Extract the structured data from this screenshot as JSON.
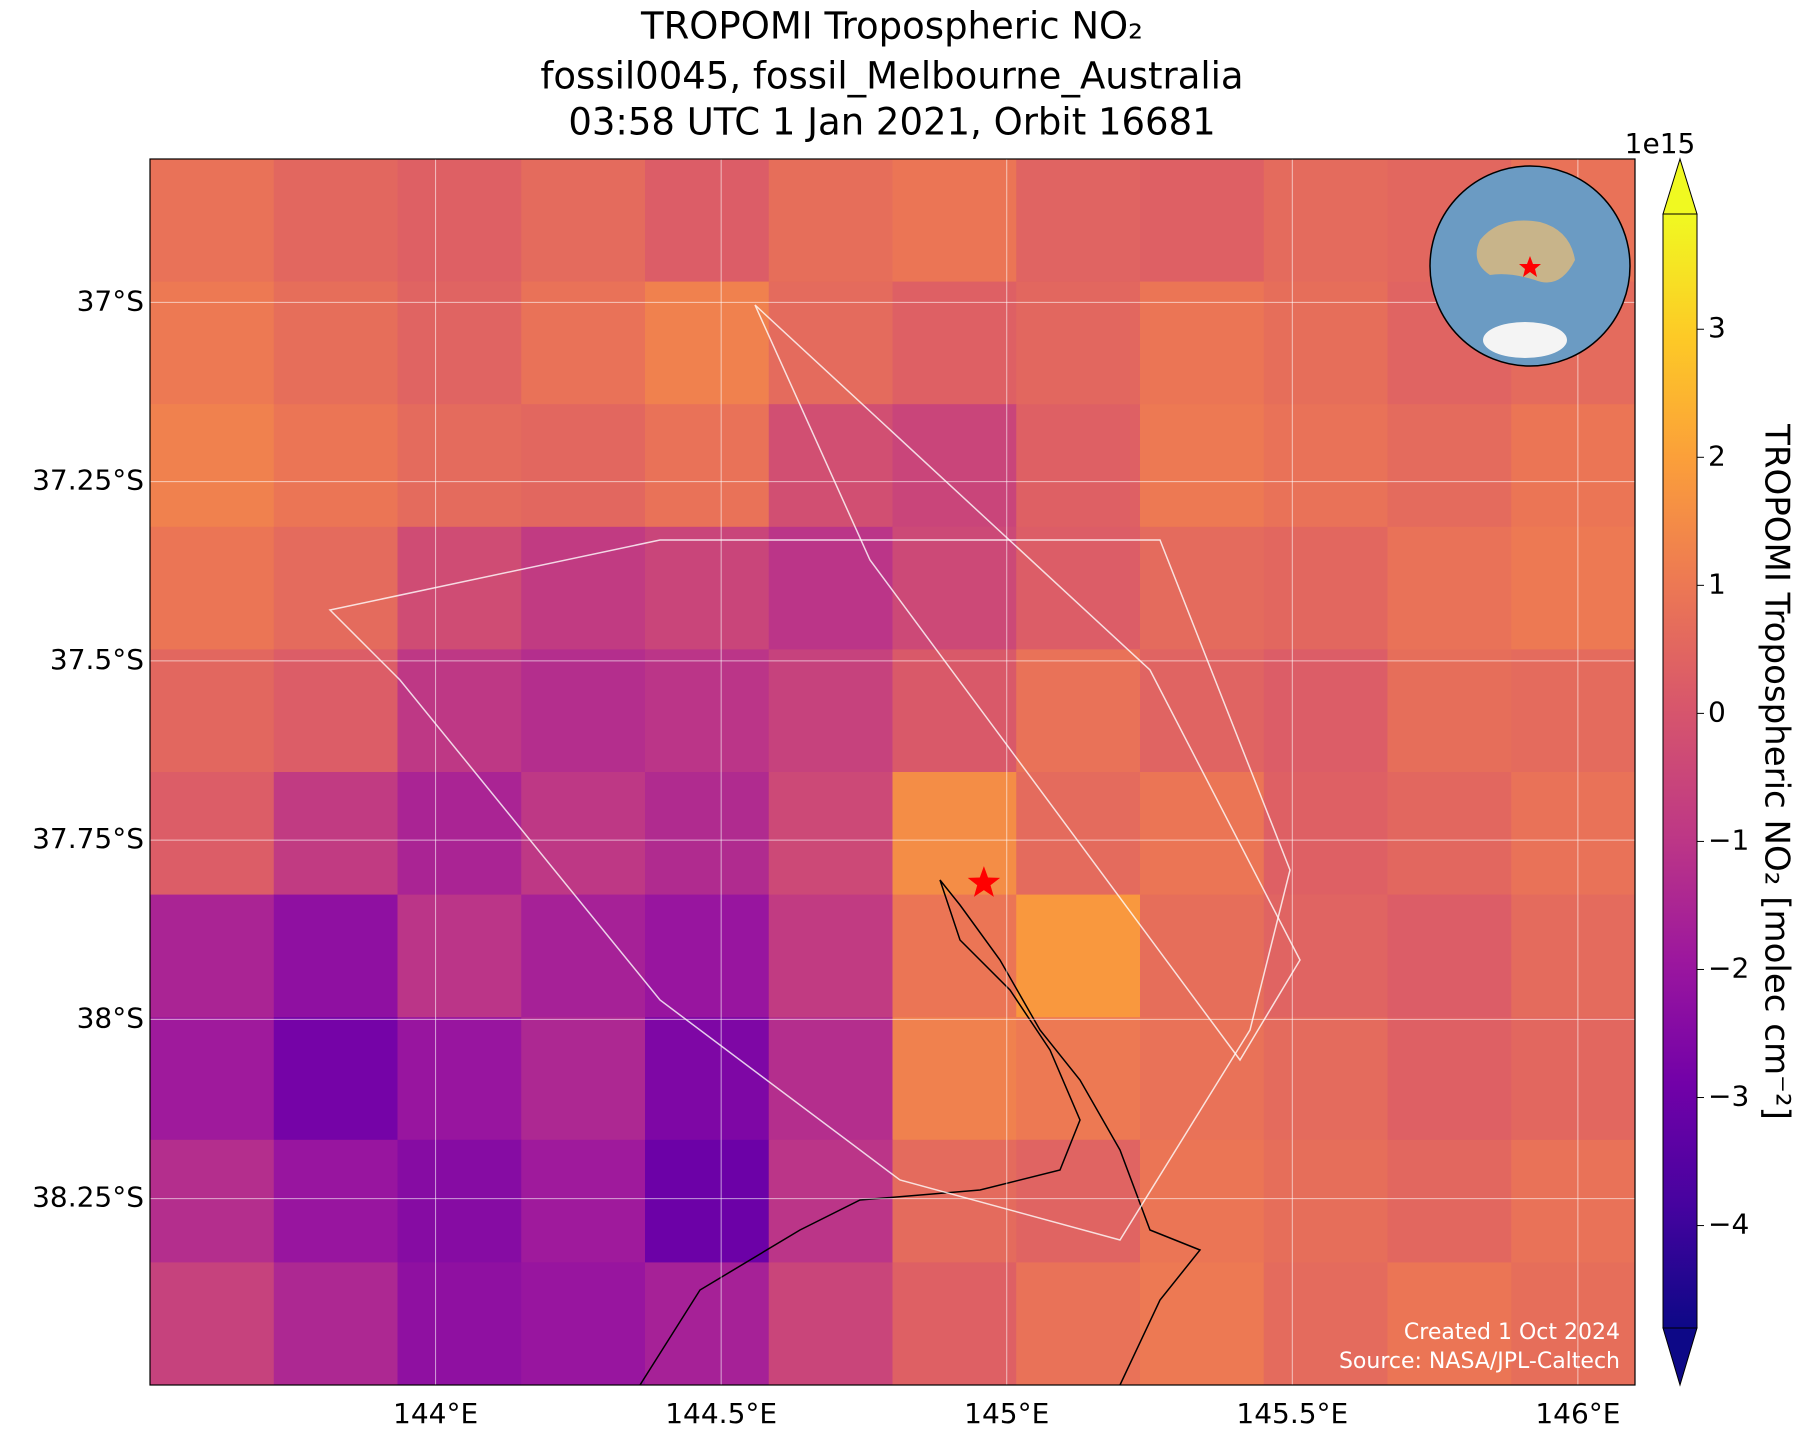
{
  "chart_data": {
    "type": "heatmap",
    "title": [
      "TROPOMI Tropospheric NO₂",
      "fossil0045, fossil_Melbourne_Australia",
      "03:58 UTC 1 Jan 2021, Orbit 16681"
    ],
    "xlim": [
      143.5,
      146.1
    ],
    "ylim": [
      -38.51,
      -36.8
    ],
    "xticks": [
      {
        "value": 144,
        "label": "144°E"
      },
      {
        "value": 144.5,
        "label": "144.5°E"
      },
      {
        "value": 145,
        "label": "145°E"
      },
      {
        "value": 145.5,
        "label": "145.5°E"
      },
      {
        "value": 146,
        "label": "146°E"
      }
    ],
    "yticks": [
      {
        "value": -37,
        "label": "37°S"
      },
      {
        "value": -37.25,
        "label": "37.25°S"
      },
      {
        "value": -37.5,
        "label": "37.5°S"
      },
      {
        "value": -37.75,
        "label": "37.75°S"
      },
      {
        "value": -38,
        "label": "38°S"
      },
      {
        "value": -38.25,
        "label": "38.25°S"
      }
    ],
    "grid": true,
    "colormap": "plasma",
    "clim": [
      -4.8,
      3.9
    ],
    "colorbar_label": "TROPOMI Tropospheric NO₂ [molec cm⁻²]",
    "colorbar_exponent": "1e15",
    "colorbar_ticks": [
      {
        "value": -4,
        "label": "−4"
      },
      {
        "value": -3,
        "label": "−3"
      },
      {
        "value": -2,
        "label": "−2"
      },
      {
        "value": -1,
        "label": "−1"
      },
      0,
      1,
      2,
      3
    ],
    "site": {
      "lon": 144.96,
      "lat": -37.81
    },
    "values": [
      [
        0.8,
        0.5,
        0.3,
        0.6,
        0.2,
        0.7,
        0.9,
        0.4,
        0.3,
        0.6,
        0.5,
        0.8
      ],
      [
        1.0,
        0.7,
        0.4,
        0.8,
        1.2,
        0.6,
        0.3,
        0.5,
        0.9,
        0.7,
        0.4,
        0.6
      ],
      [
        1.2,
        0.9,
        0.6,
        0.5,
        0.8,
        -0.2,
        -0.5,
        0.3,
        1.0,
        0.8,
        0.6,
        0.9
      ],
      [
        0.9,
        0.6,
        -0.3,
        -0.8,
        -0.5,
        -1.0,
        -0.4,
        0.2,
        0.6,
        0.5,
        0.8,
        1.0
      ],
      [
        0.5,
        0.2,
        -0.9,
        -1.2,
        -1.0,
        -0.6,
        0.1,
        0.8,
        0.4,
        0.2,
        0.7,
        0.6
      ],
      [
        0.2,
        -0.8,
        -1.5,
        -0.9,
        -1.3,
        -0.4,
        1.5,
        0.6,
        0.9,
        0.3,
        0.5,
        0.8
      ],
      [
        -1.5,
        -2.2,
        -1.0,
        -1.6,
        -2.0,
        -0.8,
        0.9,
        1.8,
        0.7,
        0.4,
        0.2,
        0.6
      ],
      [
        -1.8,
        -2.8,
        -2.0,
        -1.4,
        -2.6,
        -1.2,
        1.2,
        1.0,
        0.8,
        0.6,
        0.3,
        0.5
      ],
      [
        -1.2,
        -2.0,
        -2.4,
        -1.8,
        -3.0,
        -1.0,
        0.6,
        0.4,
        0.9,
        0.7,
        0.5,
        0.8
      ],
      [
        -0.6,
        -1.4,
        -2.2,
        -2.0,
        -1.6,
        -0.5,
        0.3,
        0.8,
        1.0,
        0.6,
        0.9,
        0.7
      ]
    ],
    "credits": [
      "Created 1 Oct 2024",
      "Source: NASA/JPL-Caltech"
    ]
  }
}
